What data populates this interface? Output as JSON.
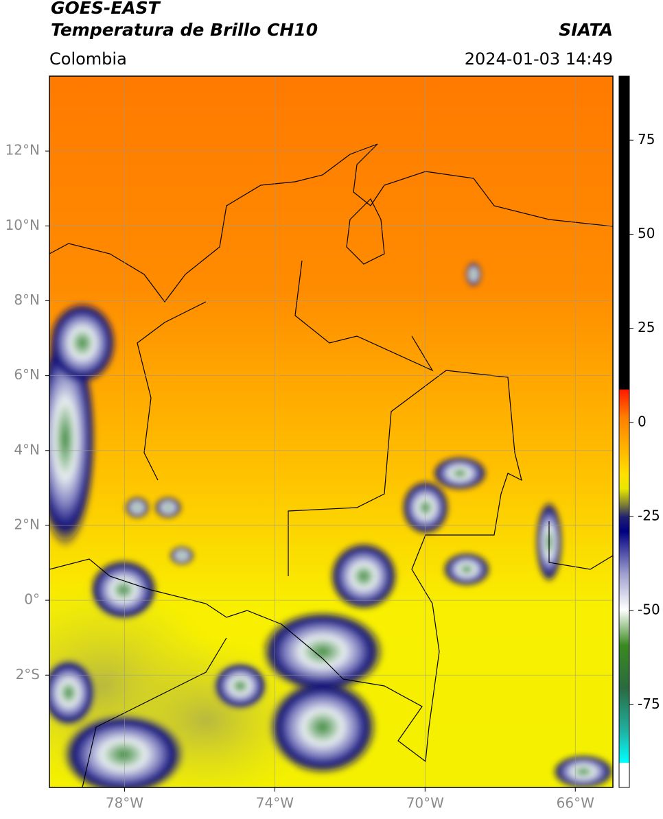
{
  "map": {
    "title": "GOES-EAST",
    "subtitle": "Temperatura de Brillo CH10",
    "source": "SIATA",
    "region": "Colombia",
    "datetime": "2024-01-03 14:49",
    "xlim": [
      -80,
      -65
    ],
    "ylim": [
      -5,
      14
    ],
    "xticks": [
      {
        "value": -78,
        "label": "78°W"
      },
      {
        "value": -74,
        "label": "74°W"
      },
      {
        "value": -70,
        "label": "70°W"
      },
      {
        "value": -66,
        "label": "66°W"
      }
    ],
    "yticks": [
      {
        "value": 12,
        "label": "12°N"
      },
      {
        "value": 10,
        "label": "10°N"
      },
      {
        "value": 8,
        "label": "8°N"
      },
      {
        "value": 6,
        "label": "6°N"
      },
      {
        "value": 4,
        "label": "4°N"
      },
      {
        "value": 2,
        "label": "2°N"
      },
      {
        "value": 0,
        "label": "0°"
      },
      {
        "value": -2,
        "label": "2°S"
      }
    ],
    "grid": true,
    "colorbar": {
      "lim": [
        -97,
        92
      ],
      "ticks": [
        75,
        50,
        25,
        0,
        -25,
        -50,
        -75
      ]
    }
  }
}
